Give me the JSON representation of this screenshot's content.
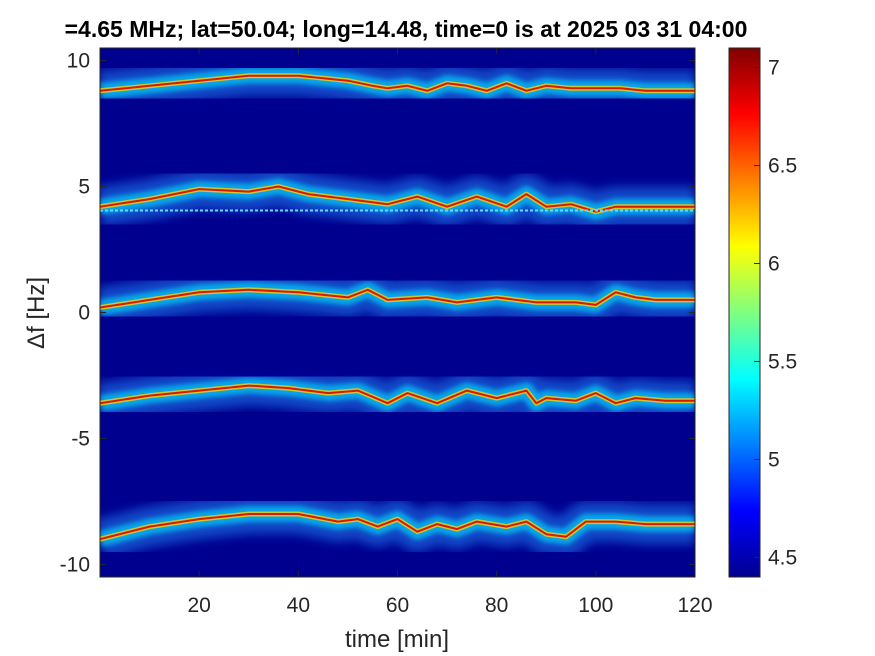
{
  "chart_data": {
    "type": "heatmap",
    "title": "=4.65 MHz;  lat=50.04; long=14.48, time=0 is at 2025 03 31 04:00",
    "xlabel": "time [min]",
    "ylabel": "Δf [Hz]",
    "xlim": [
      0,
      120
    ],
    "ylim": [
      -10.5,
      10.5
    ],
    "xticks": [
      "20",
      "40",
      "60",
      "80",
      "100",
      "120"
    ],
    "yticks": [
      "10",
      "5",
      "0",
      "-5",
      "-10"
    ],
    "colorbar": {
      "range": [
        4.4,
        7.1
      ],
      "ticks": [
        "4.5",
        "5",
        "5.5",
        "6",
        "6.5",
        "7"
      ],
      "colormap": "jet"
    },
    "background_color": "#00008f",
    "traces": [
      {
        "name": "trace-10hz",
        "x": [
          0,
          10,
          20,
          30,
          40,
          50,
          55,
          58,
          62,
          66,
          70,
          74,
          78,
          82,
          86,
          90,
          95,
          100,
          105,
          110,
          120
        ],
        "y": [
          8.8,
          9.0,
          9.2,
          9.4,
          9.4,
          9.2,
          9.0,
          8.9,
          9.0,
          8.8,
          9.1,
          9.0,
          8.8,
          9.1,
          8.8,
          9.0,
          8.9,
          8.9,
          8.9,
          8.8,
          8.8
        ]
      },
      {
        "name": "trace-4hz",
        "x": [
          0,
          10,
          20,
          30,
          36,
          42,
          50,
          58,
          64,
          70,
          76,
          82,
          86,
          90,
          95,
          100,
          104,
          110,
          120
        ],
        "y": [
          4.2,
          4.5,
          4.9,
          4.8,
          5.0,
          4.7,
          4.5,
          4.3,
          4.6,
          4.2,
          4.6,
          4.2,
          4.7,
          4.2,
          4.3,
          4.0,
          4.2,
          4.2,
          4.2
        ]
      },
      {
        "name": "trace-0hz",
        "x": [
          0,
          10,
          20,
          30,
          40,
          50,
          54,
          58,
          66,
          72,
          80,
          88,
          96,
          100,
          104,
          108,
          112,
          120
        ],
        "y": [
          0.2,
          0.5,
          0.8,
          0.9,
          0.8,
          0.6,
          0.9,
          0.5,
          0.6,
          0.4,
          0.6,
          0.4,
          0.4,
          0.3,
          0.8,
          0.6,
          0.5,
          0.5
        ]
      },
      {
        "name": "trace-minus3.5hz",
        "x": [
          0,
          10,
          20,
          30,
          38,
          46,
          52,
          58,
          62,
          68,
          74,
          80,
          86,
          88,
          90,
          96,
          100,
          104,
          108,
          114,
          120
        ],
        "y": [
          -3.6,
          -3.3,
          -3.1,
          -2.9,
          -3.0,
          -3.2,
          -3.1,
          -3.6,
          -3.2,
          -3.6,
          -3.1,
          -3.4,
          -3.1,
          -3.6,
          -3.4,
          -3.5,
          -3.2,
          -3.6,
          -3.4,
          -3.5,
          -3.5
        ]
      },
      {
        "name": "trace-minus8.5hz",
        "x": [
          0,
          10,
          20,
          30,
          40,
          48,
          52,
          56,
          60,
          64,
          68,
          72,
          76,
          82,
          86,
          90,
          94,
          98,
          104,
          110,
          120
        ],
        "y": [
          -9.0,
          -8.5,
          -8.2,
          -8.0,
          -8.0,
          -8.3,
          -8.2,
          -8.5,
          -8.2,
          -8.7,
          -8.4,
          -8.6,
          -8.3,
          -8.5,
          -8.3,
          -8.8,
          -8.9,
          -8.3,
          -8.3,
          -8.4,
          -8.4
        ]
      }
    ],
    "lines": [
      {
        "name": "baseline-4hz",
        "y": 4.05
      }
    ]
  }
}
